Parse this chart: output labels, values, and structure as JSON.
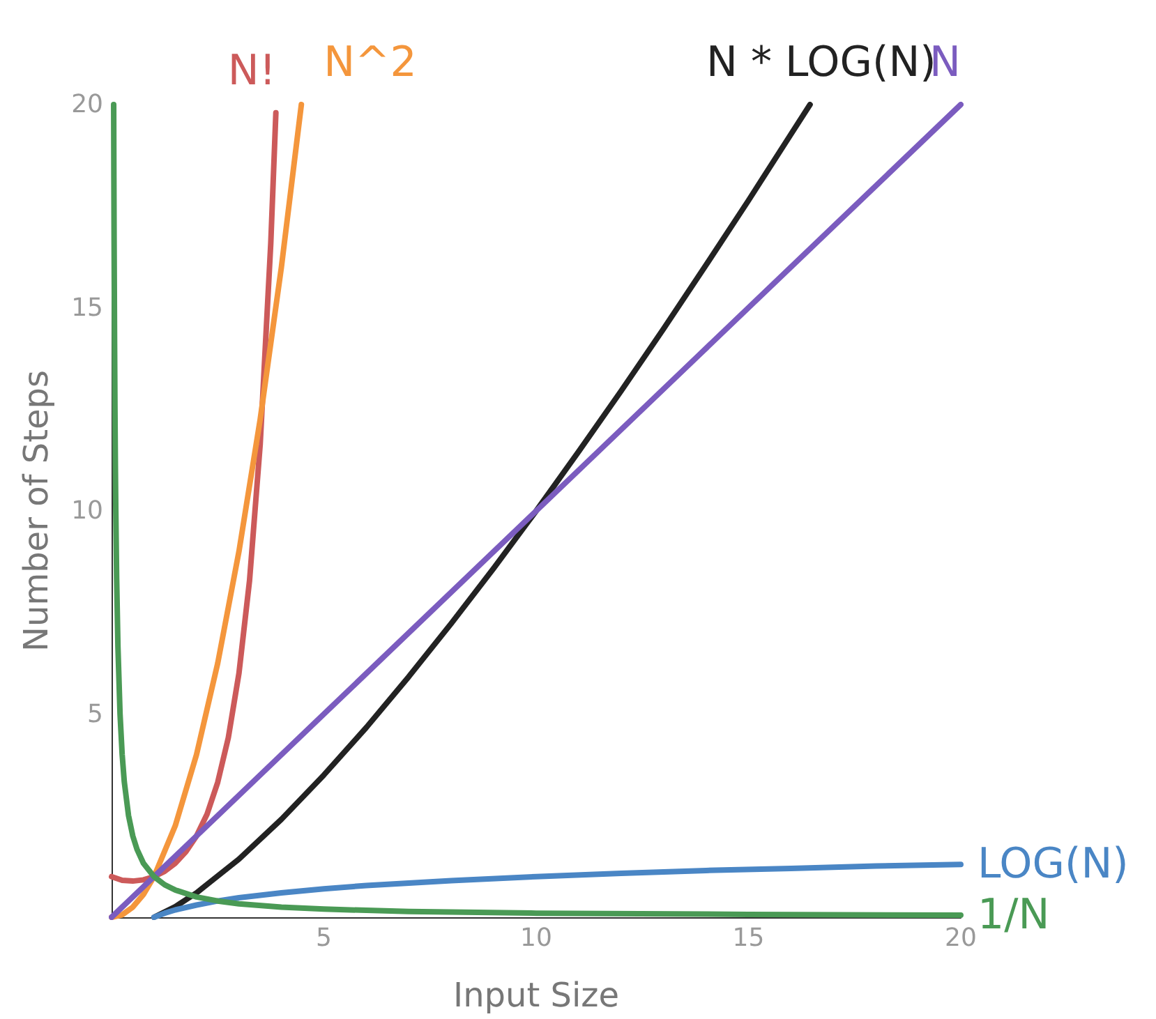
{
  "chart_data": {
    "type": "line",
    "xlabel": "Input Size",
    "ylabel": "Number of Steps",
    "xlim": [
      0,
      20
    ],
    "ylim": [
      0,
      20
    ],
    "xticks": [
      5,
      10,
      15,
      20
    ],
    "yticks": [
      5,
      10,
      15,
      20
    ],
    "grid": false,
    "legend": false,
    "marker": "none",
    "line_style": "solid",
    "series": [
      {
        "name": "N!",
        "color": "#cc5a5a",
        "x": [
          0,
          0.25,
          0.5,
          0.75,
          1,
          1.25,
          1.5,
          1.75,
          2,
          2.25,
          2.5,
          2.75,
          3,
          3.25,
          3.5,
          3.75,
          3.87
        ],
        "values": [
          1,
          0.91,
          0.89,
          0.92,
          1,
          1.13,
          1.33,
          1.61,
          2,
          2.54,
          3.32,
          4.42,
          6,
          8.29,
          11.63,
          16.59,
          19.8
        ]
      },
      {
        "name": "N^2",
        "color": "#f4963c",
        "x": [
          0,
          0.25,
          0.5,
          0.75,
          1,
          1.5,
          2,
          2.5,
          3,
          3.5,
          4,
          4.47
        ],
        "values": [
          0,
          0.06,
          0.25,
          0.56,
          1,
          2.25,
          4,
          6.25,
          9,
          12.25,
          16,
          20
        ]
      },
      {
        "name": "N * LOG(N)",
        "color": "#222222",
        "x": [
          1,
          1.5,
          2,
          3,
          4,
          5,
          6,
          7,
          8,
          9,
          10,
          11,
          12,
          13,
          14,
          15,
          16,
          16.45
        ],
        "values": [
          0,
          0.26,
          0.6,
          1.43,
          2.41,
          3.5,
          4.67,
          5.92,
          7.23,
          8.59,
          10,
          11.46,
          12.95,
          14.48,
          16.05,
          17.64,
          19.27,
          20
        ]
      },
      {
        "name": "N",
        "color": "#7b5cbf",
        "x": [
          0,
          20
        ],
        "values": [
          0,
          20
        ]
      },
      {
        "name": "LOG(N)",
        "color": "#4a86c5",
        "x": [
          1,
          1.25,
          1.5,
          2,
          2.5,
          3,
          4,
          5,
          6,
          8,
          10,
          12,
          14,
          16,
          18,
          20
        ],
        "values": [
          0,
          0.1,
          0.18,
          0.3,
          0.4,
          0.48,
          0.6,
          0.7,
          0.78,
          0.9,
          1,
          1.08,
          1.15,
          1.2,
          1.26,
          1.3
        ]
      },
      {
        "name": "1/N",
        "color": "#4a9a55",
        "x": [
          0.05,
          0.055,
          0.06,
          0.07,
          0.08,
          0.09,
          0.1,
          0.12,
          0.15,
          0.2,
          0.25,
          0.3,
          0.4,
          0.5,
          0.6,
          0.75,
          1,
          1.25,
          1.5,
          2,
          2.5,
          3,
          4,
          5,
          7,
          10,
          15,
          20
        ],
        "values": [
          20,
          18.18,
          16.67,
          14.29,
          12.5,
          11.11,
          10,
          8.33,
          6.67,
          5,
          4,
          3.33,
          2.5,
          2,
          1.67,
          1.33,
          1,
          0.8,
          0.67,
          0.5,
          0.4,
          0.33,
          0.25,
          0.2,
          0.14,
          0.1,
          0.07,
          0.05
        ]
      }
    ]
  }
}
